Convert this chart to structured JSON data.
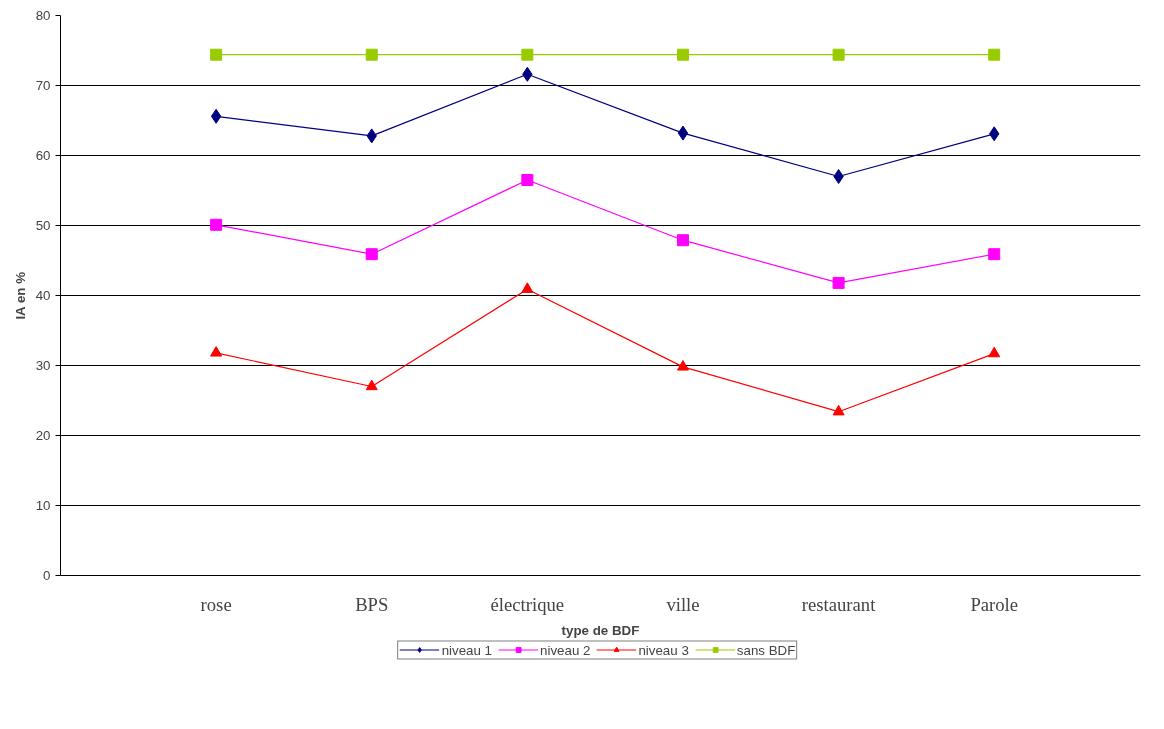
{
  "chart_data": {
    "type": "line",
    "xlabel": "type de BDF",
    "ylabel": "IA en %",
    "categories": [
      "rose",
      "BPS",
      "électrique",
      "ville",
      "restaurant",
      "Parole"
    ],
    "series": [
      {
        "name": "niveau 1",
        "color": "#000080",
        "marker": "diamond",
        "values": [
          65.6,
          62.8,
          71.6,
          63.2,
          57.0,
          63.1
        ]
      },
      {
        "name": "niveau 2",
        "color": "#ff00ff",
        "marker": "square",
        "values": [
          50.1,
          45.9,
          56.5,
          47.9,
          41.8,
          45.9
        ]
      },
      {
        "name": "niveau 3",
        "color": "#ff0000",
        "marker": "triangle",
        "values": [
          31.8,
          27.0,
          40.9,
          29.8,
          23.4,
          31.7
        ]
      },
      {
        "name": "sans BDF",
        "color": "#99cc00",
        "marker": "square",
        "values": [
          74.4,
          74.4,
          74.4,
          74.4,
          74.4,
          74.4
        ]
      }
    ],
    "ylim": [
      0,
      80
    ],
    "yticks": [
      0,
      10,
      20,
      30,
      40,
      50,
      60,
      70,
      80
    ],
    "grid": "y",
    "legend": "bottom"
  }
}
